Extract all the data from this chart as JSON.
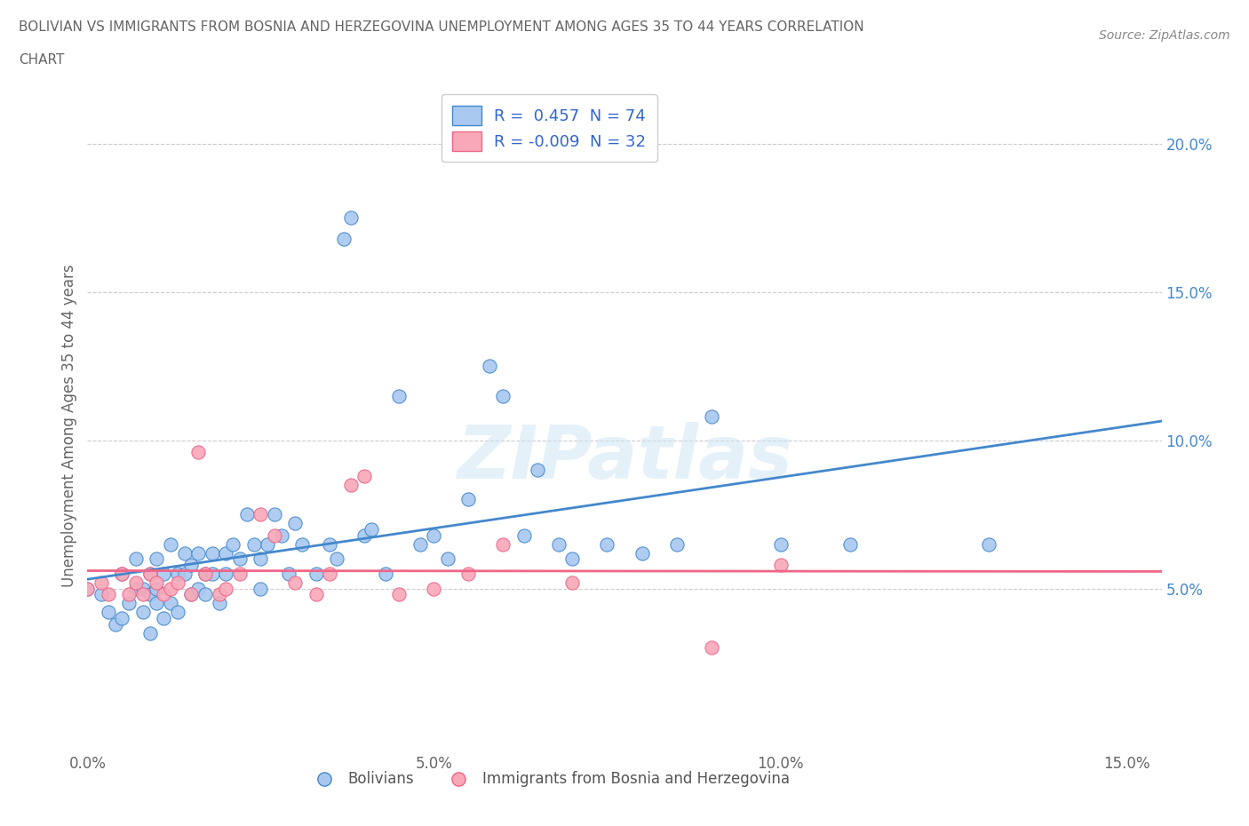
{
  "title_line1": "BOLIVIAN VS IMMIGRANTS FROM BOSNIA AND HERZEGOVINA UNEMPLOYMENT AMONG AGES 35 TO 44 YEARS CORRELATION",
  "title_line2": "CHART",
  "source": "Source: ZipAtlas.com",
  "ylabel": "Unemployment Among Ages 35 to 44 years",
  "xlim": [
    0.0,
    0.155
  ],
  "ylim": [
    -0.005,
    0.215
  ],
  "xticks": [
    0.0,
    0.05,
    0.1,
    0.15
  ],
  "xticklabels": [
    "0.0%",
    "5.0%",
    "10.0%",
    "15.0%"
  ],
  "yticks": [
    0.05,
    0.1,
    0.15,
    0.2
  ],
  "yticklabels": [
    "5.0%",
    "10.0%",
    "15.0%",
    "20.0%"
  ],
  "R_bolivian": 0.457,
  "N_bolivian": 74,
  "R_bosnia": -0.009,
  "N_bosnia": 32,
  "bolivian_color": "#a8c8f0",
  "bosnia_color": "#f8a8b8",
  "trendline_bolivian_color": "#4488cc",
  "trendline_bosnia_color": "#ee6688",
  "watermark": "ZIPatlas",
  "bolivian_scatter_x": [
    0.0,
    0.002,
    0.003,
    0.004,
    0.005,
    0.005,
    0.006,
    0.007,
    0.007,
    0.008,
    0.008,
    0.009,
    0.009,
    0.009,
    0.01,
    0.01,
    0.01,
    0.011,
    0.011,
    0.012,
    0.012,
    0.013,
    0.013,
    0.014,
    0.014,
    0.015,
    0.015,
    0.016,
    0.016,
    0.017,
    0.017,
    0.018,
    0.018,
    0.019,
    0.02,
    0.02,
    0.021,
    0.022,
    0.023,
    0.024,
    0.025,
    0.025,
    0.026,
    0.027,
    0.028,
    0.029,
    0.03,
    0.031,
    0.033,
    0.035,
    0.036,
    0.037,
    0.038,
    0.04,
    0.041,
    0.043,
    0.045,
    0.048,
    0.05,
    0.052,
    0.055,
    0.058,
    0.06,
    0.063,
    0.065,
    0.068,
    0.07,
    0.075,
    0.08,
    0.085,
    0.09,
    0.1,
    0.11,
    0.13
  ],
  "bolivian_scatter_y": [
    0.05,
    0.048,
    0.042,
    0.038,
    0.04,
    0.055,
    0.045,
    0.05,
    0.06,
    0.05,
    0.042,
    0.055,
    0.048,
    0.035,
    0.05,
    0.045,
    0.06,
    0.04,
    0.055,
    0.065,
    0.045,
    0.055,
    0.042,
    0.055,
    0.062,
    0.048,
    0.058,
    0.05,
    0.062,
    0.055,
    0.048,
    0.062,
    0.055,
    0.045,
    0.055,
    0.062,
    0.065,
    0.06,
    0.075,
    0.065,
    0.05,
    0.06,
    0.065,
    0.075,
    0.068,
    0.055,
    0.072,
    0.065,
    0.055,
    0.065,
    0.06,
    0.168,
    0.175,
    0.068,
    0.07,
    0.055,
    0.115,
    0.065,
    0.068,
    0.06,
    0.08,
    0.125,
    0.115,
    0.068,
    0.09,
    0.065,
    0.06,
    0.065,
    0.062,
    0.065,
    0.108,
    0.065,
    0.065,
    0.065
  ],
  "bosnia_scatter_x": [
    0.0,
    0.002,
    0.003,
    0.005,
    0.006,
    0.007,
    0.008,
    0.009,
    0.01,
    0.011,
    0.012,
    0.013,
    0.015,
    0.016,
    0.017,
    0.019,
    0.02,
    0.022,
    0.025,
    0.027,
    0.03,
    0.033,
    0.035,
    0.038,
    0.04,
    0.045,
    0.05,
    0.055,
    0.06,
    0.07,
    0.09,
    0.1
  ],
  "bosnia_scatter_y": [
    0.05,
    0.052,
    0.048,
    0.055,
    0.048,
    0.052,
    0.048,
    0.055,
    0.052,
    0.048,
    0.05,
    0.052,
    0.048,
    0.096,
    0.055,
    0.048,
    0.05,
    0.055,
    0.075,
    0.068,
    0.052,
    0.048,
    0.055,
    0.085,
    0.088,
    0.048,
    0.05,
    0.055,
    0.065,
    0.052,
    0.03,
    0.058
  ]
}
